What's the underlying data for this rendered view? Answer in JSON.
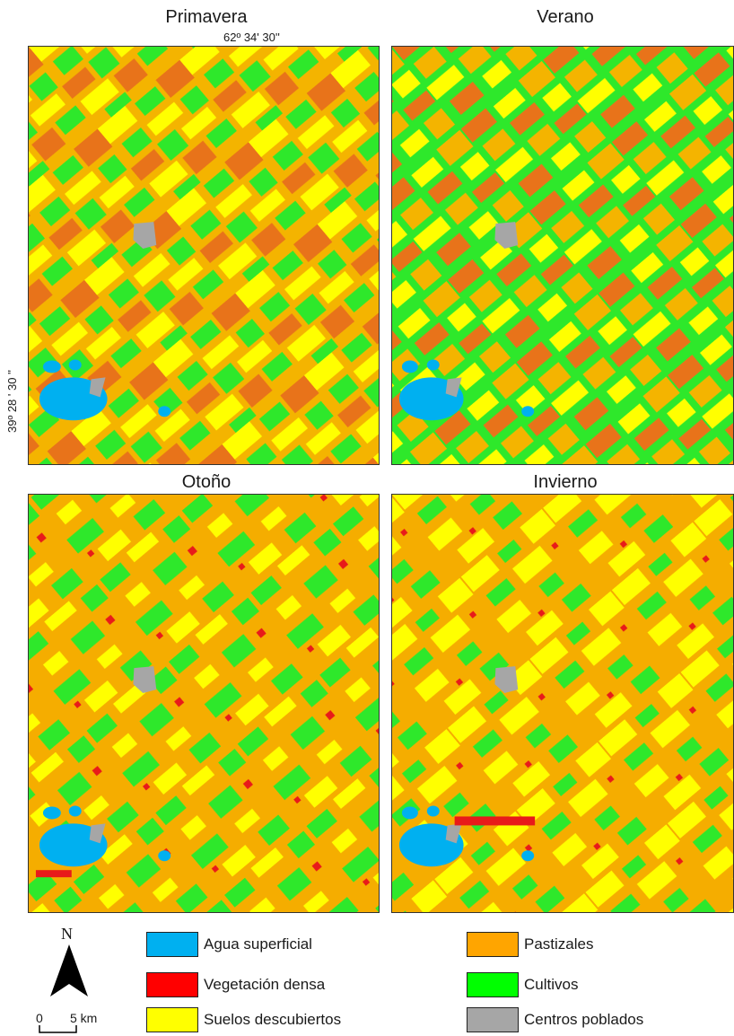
{
  "panels": [
    {
      "id": "primavera",
      "title": "Primavera",
      "pattern": "p-primavera",
      "base": "#f4b400"
    },
    {
      "id": "verano",
      "title": "Verano",
      "pattern": "p-verano",
      "base": "#2ee82b"
    },
    {
      "id": "otono",
      "title": "Otoño",
      "pattern": "p-otono",
      "base": "#f5ad00"
    },
    {
      "id": "invierno",
      "title": "Invierno",
      "pattern": "p-invierno",
      "base": "#f5ad00"
    }
  ],
  "coordinates": {
    "longitude": "62º 34' 30''",
    "latitude": "39º 28 ' 30 ''"
  },
  "legend": [
    {
      "label": "Agua superficial",
      "color": "#00b0f0"
    },
    {
      "label": "Pastizales",
      "color": "#ffa500"
    },
    {
      "label": "Vegetación densa",
      "color": "#ff0000"
    },
    {
      "label": "Cultivos",
      "color": "#00ff00"
    },
    {
      "label": "Suelos descubiertos",
      "color": "#ffff00"
    },
    {
      "label": "Centros poblados",
      "color": "#a6a6a6"
    }
  ],
  "north_arrow": {
    "label": "N"
  },
  "scale_bar": {
    "start": "0",
    "end": "5 km"
  }
}
